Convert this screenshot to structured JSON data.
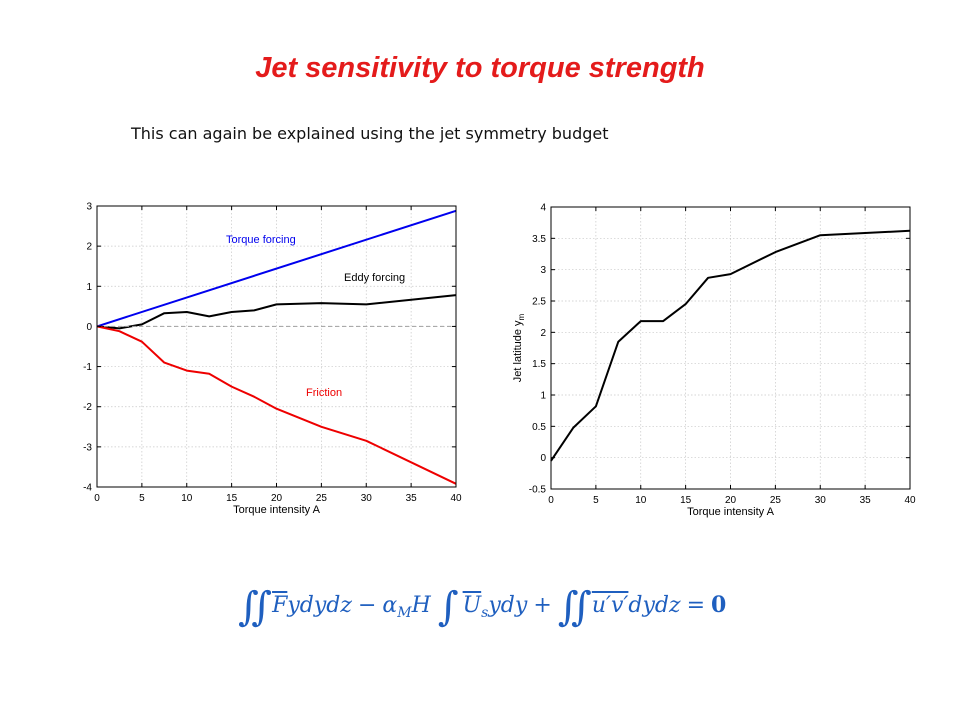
{
  "slide": {
    "title": "Jet sensitivity to torque strength",
    "subtitle": "This can again be explained using the jet symmetry budget"
  },
  "equation": {
    "int2": "∬",
    "int1": "∫",
    "F": "F",
    "term1_rest": "ydydz",
    "minus": "−",
    "alpha": "α",
    "alpha_sub": "M",
    "H": "H",
    "U": "U",
    "U_sub": "s",
    "term2_rest": "ydy",
    "plus": "+",
    "uv": "u′v′",
    "term3_rest": "dydz",
    "equals": "=",
    "zero": "0"
  },
  "chart_data": [
    {
      "type": "line",
      "xlabel": "Torque intensity A",
      "ylabel": "",
      "xlim": [
        0,
        40
      ],
      "ylim": [
        -4,
        3
      ],
      "xticks": [
        0,
        5,
        10,
        15,
        20,
        25,
        30,
        35,
        40
      ],
      "yticks": [
        3,
        2,
        1,
        0,
        -1,
        -2,
        -3,
        -4
      ],
      "grid": true,
      "series": [
        {
          "name": "Torque forcing",
          "color": "#0000ee",
          "x": [
            0,
            40
          ],
          "y": [
            0,
            2.88
          ]
        },
        {
          "name": "Eddy forcing",
          "color": "#000000",
          "x": [
            0,
            2.5,
            5,
            7.5,
            10,
            12.5,
            15,
            17.5,
            20,
            25,
            30,
            40
          ],
          "y": [
            0,
            -0.05,
            0.05,
            0.33,
            0.36,
            0.25,
            0.36,
            0.4,
            0.55,
            0.58,
            0.55,
            0.78
          ]
        },
        {
          "name": "Friction",
          "color": "#ee0000",
          "x": [
            0,
            2.5,
            5,
            7.5,
            10,
            12.5,
            15,
            17.5,
            20,
            25,
            30,
            40
          ],
          "y": [
            0,
            -0.12,
            -0.38,
            -0.9,
            -1.1,
            -1.18,
            -1.5,
            -1.75,
            -2.05,
            -2.5,
            -2.85,
            -3.92
          ]
        },
        {
          "name": "",
          "color": "#a0a0a0",
          "dashed": true,
          "x": [
            0,
            40
          ],
          "y": [
            0,
            0
          ]
        }
      ]
    },
    {
      "type": "line",
      "xlabel": "Torque intensity A",
      "ylabel": "Jet latitude y",
      "ylabel_sub": "m",
      "xlim": [
        0,
        40
      ],
      "ylim": [
        -0.5,
        4
      ],
      "xticks": [
        0,
        5,
        10,
        15,
        20,
        25,
        30,
        35,
        40
      ],
      "yticks": [
        4,
        3.5,
        3,
        2.5,
        2,
        1.5,
        1,
        0.5,
        0,
        -0.5
      ],
      "grid": true,
      "series": [
        {
          "name": "",
          "color": "#000000",
          "x": [
            0,
            2.5,
            5,
            7.5,
            10,
            12.5,
            15,
            17.5,
            20,
            25,
            30,
            40
          ],
          "y": [
            -0.05,
            0.48,
            0.82,
            1.85,
            2.18,
            2.18,
            2.45,
            2.87,
            2.93,
            3.28,
            3.55,
            3.62
          ]
        }
      ]
    }
  ]
}
